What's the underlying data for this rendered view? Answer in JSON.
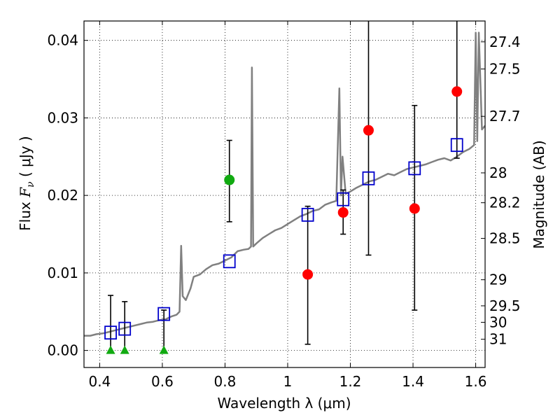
{
  "chart_data": {
    "type": "scatter",
    "xlabel": "Wavelength  λ (μm)",
    "ylabel_parts": [
      "Flux ",
      "F",
      "ν",
      "  ( μJy )"
    ],
    "y2label": "Magnitude (AB)",
    "xlim": [
      0.35,
      1.63
    ],
    "ylim": [
      -0.0022,
      0.0425
    ],
    "x_ticks": [
      0.4,
      0.6,
      0.8,
      1.0,
      1.2,
      1.4,
      1.6
    ],
    "x_tick_labels": [
      "0.4",
      "0.6",
      "0.8",
      "1",
      "1.2",
      "1.4",
      "1.6"
    ],
    "y_ticks": [
      0.0,
      0.01,
      0.02,
      0.03,
      0.04
    ],
    "y_tick_labels": [
      "0.00",
      "0.01",
      "0.02",
      "0.03",
      "0.04"
    ],
    "mag_ticks": [
      "27.4",
      "27.5",
      "27.7",
      "28",
      "28.2",
      "28.5",
      "29",
      "29.5",
      "30",
      "31"
    ],
    "grid": true,
    "colors": {
      "model": "#808080",
      "model_photometry": "#0000cc",
      "detections": "#ff0000",
      "green_detection": "#11aa11",
      "upper_limits": "#11aa11",
      "errorbars": "#000000"
    },
    "series": [
      {
        "name": "model spectrum",
        "style": "line",
        "x": [
          0.35,
          0.37,
          0.39,
          0.41,
          0.43,
          0.45,
          0.47,
          0.49,
          0.51,
          0.53,
          0.55,
          0.57,
          0.59,
          0.61,
          0.63,
          0.645,
          0.655,
          0.66,
          0.665,
          0.675,
          0.69,
          0.7,
          0.72,
          0.74,
          0.76,
          0.78,
          0.8,
          0.82,
          0.84,
          0.86,
          0.875,
          0.883,
          0.886,
          0.89,
          0.9,
          0.92,
          0.94,
          0.96,
          0.98,
          1.0,
          1.02,
          1.04,
          1.06,
          1.08,
          1.1,
          1.12,
          1.14,
          1.155,
          1.165,
          1.17,
          1.175,
          1.185,
          1.2,
          1.22,
          1.24,
          1.26,
          1.28,
          1.3,
          1.32,
          1.34,
          1.36,
          1.38,
          1.4,
          1.42,
          1.44,
          1.46,
          1.48,
          1.5,
          1.52,
          1.54,
          1.56,
          1.58,
          1.595,
          1.6,
          1.605,
          1.61,
          1.62,
          1.63
        ],
        "y": [
          0.0019,
          0.0019,
          0.0021,
          0.0022,
          0.0024,
          0.0026,
          0.0028,
          0.003,
          0.0032,
          0.0034,
          0.0036,
          0.0037,
          0.0039,
          0.004,
          0.0044,
          0.0046,
          0.005,
          0.0135,
          0.007,
          0.0065,
          0.008,
          0.0095,
          0.0098,
          0.0105,
          0.011,
          0.0112,
          0.0116,
          0.012,
          0.0128,
          0.013,
          0.0131,
          0.0134,
          0.0365,
          0.0134,
          0.0138,
          0.0145,
          0.015,
          0.0155,
          0.0158,
          0.0163,
          0.0168,
          0.0173,
          0.0176,
          0.018,
          0.0182,
          0.0188,
          0.0191,
          0.0193,
          0.0338,
          0.02,
          0.025,
          0.0202,
          0.0205,
          0.021,
          0.0214,
          0.0218,
          0.022,
          0.0224,
          0.0228,
          0.0226,
          0.023,
          0.0234,
          0.0236,
          0.0238,
          0.024,
          0.0243,
          0.0246,
          0.0248,
          0.0245,
          0.025,
          0.0256,
          0.026,
          0.0265,
          0.041,
          0.027,
          0.041,
          0.0285,
          0.029
        ]
      },
      {
        "name": "model photometry",
        "style": "open-square",
        "x": [
          0.435,
          0.48,
          0.605,
          0.814,
          1.064,
          1.177,
          1.258,
          1.405,
          1.54
        ],
        "y": [
          0.0023,
          0.0028,
          0.0047,
          0.0115,
          0.0175,
          0.0195,
          0.0222,
          0.0235,
          0.0265
        ]
      },
      {
        "name": "detections",
        "style": "filled-circle",
        "x": [
          0.814,
          1.064,
          1.177,
          1.258,
          1.405,
          1.54
        ],
        "y": [
          0.022,
          0.0098,
          0.0178,
          0.0284,
          0.0183,
          0.0334
        ],
        "yerr_low": [
          0.0166,
          0.0008,
          0.015,
          0.0123,
          0.0052,
          0.0248
        ],
        "yerr_high": [
          0.0271,
          0.0186,
          0.0207,
          0.044,
          0.0316,
          0.044
        ],
        "colors": [
          "#11aa11",
          "#ff0000",
          "#ff0000",
          "#ff0000",
          "#ff0000",
          "#ff0000"
        ]
      },
      {
        "name": "upper limits",
        "style": "filled-triangle",
        "x": [
          0.435,
          0.48,
          0.605
        ],
        "y": [
          0.0,
          0.0,
          0.0
        ],
        "yerr_high": [
          0.0071,
          0.0063,
          0.0052
        ]
      }
    ]
  }
}
